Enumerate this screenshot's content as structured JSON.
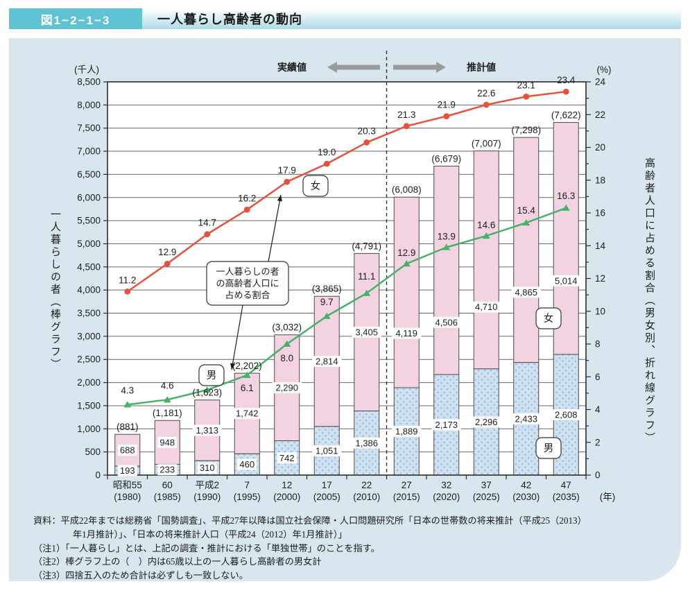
{
  "figure": {
    "code": "図1−2−1−3",
    "title": "一人暮らし高齢者の動向"
  },
  "chart_data": {
    "type": "combo: stacked bar (counts) + two lines (percent)",
    "categories": [
      {
        "era": "昭和55",
        "year": "(1980)"
      },
      {
        "era": "60",
        "year": "(1985)"
      },
      {
        "era": "平成2",
        "year": "(1990)"
      },
      {
        "era": "7",
        "year": "(1995)"
      },
      {
        "era": "12",
        "year": "(2000)"
      },
      {
        "era": "17",
        "year": "(2005)"
      },
      {
        "era": "22",
        "year": "(2010)"
      },
      {
        "era": "27",
        "year": "(2015)"
      },
      {
        "era": "32",
        "year": "(2020)"
      },
      {
        "era": "37",
        "year": "(2025)"
      },
      {
        "era": "42",
        "year": "(2030)"
      },
      {
        "era": "47",
        "year": "(2035)"
      }
    ],
    "x_axis_suffix": "(年)",
    "bars": {
      "male": {
        "label": "男",
        "color": "#cfe1f1",
        "dot_color": "#8fb7dd",
        "values": [
          193,
          233,
          310,
          460,
          742,
          1051,
          1386,
          1889,
          2173,
          2296,
          2433,
          2608
        ]
      },
      "female": {
        "label": "女",
        "color": "#f3d2e1",
        "values": [
          688,
          948,
          1313,
          1742,
          2290,
          2814,
          3405,
          4119,
          4506,
          4710,
          4865,
          5014
        ]
      },
      "totals": [
        881,
        1181,
        1623,
        2202,
        3032,
        3865,
        4791,
        6008,
        6679,
        7007,
        7298,
        7622
      ]
    },
    "lines": {
      "female": {
        "label": "女",
        "color": "#e8503a",
        "marker": "circle",
        "values": [
          11.2,
          12.9,
          14.7,
          16.2,
          17.9,
          19.0,
          20.3,
          21.3,
          21.9,
          22.6,
          23.1,
          23.4
        ]
      },
      "male": {
        "label": "男",
        "color": "#46b169",
        "marker": "triangle",
        "values": [
          4.3,
          4.6,
          5.2,
          6.1,
          8.0,
          9.7,
          11.1,
          12.9,
          13.9,
          14.6,
          15.4,
          16.3
        ]
      }
    },
    "left_axis": {
      "unit": "(千人)",
      "min": 0,
      "max": 8500,
      "step": 500,
      "title": "一人暮らしの者（棒グラフ）"
    },
    "right_axis": {
      "unit": "(%)",
      "min": 0,
      "max": 24,
      "label_step": 2,
      "tick_step": 1,
      "title": "高齢者人口に占める割合（男女別、折れ線グラフ）"
    },
    "divider": {
      "after_category_index": 6,
      "left_label": "実績値",
      "right_label": "推計値"
    },
    "callout": {
      "lines": [
        "一人暮らしの者",
        "の高齢者人口に",
        "占める割合"
      ]
    },
    "legend_position": "inline labels (女/男 badges on lines and bars)",
    "grid": "horizontal gridlines every 500 (thousand persons)"
  },
  "notes": {
    "lines": [
      "資料：平成22年までは総務省「国勢調査」、平成27年以降は国立社会保障・人口問題研究所「日本の世帯数の将来推計（平成25（2013）",
      "年1月推計）」、「日本の将来推計人口（平成24（2012）年1月推計）」",
      "（注1）「一人暮らし」とは、上記の調査・推計における「単独世帯」のことを指す。",
      "（注2）棒グラフ上の（　）内は65歳以上の一人暮らし高齢者の男女計",
      "（注3）四捨五入のため合計は必ずしも一致しない。"
    ]
  }
}
